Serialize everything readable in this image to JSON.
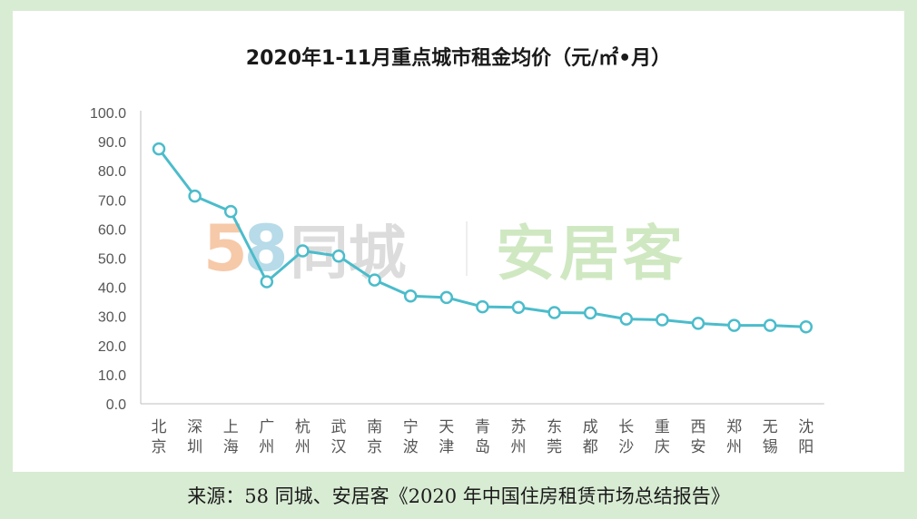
{
  "chart_data": {
    "type": "line",
    "title": "2020年1-11月重点城市租金均价（元/㎡•月）",
    "categories": [
      "北京",
      "深圳",
      "上海",
      "广州",
      "杭州",
      "武汉",
      "南京",
      "宁波",
      "天津",
      "青岛",
      "苏州",
      "东莞",
      "成都",
      "长沙",
      "重庆",
      "西安",
      "郑州",
      "无锡",
      "沈阳"
    ],
    "values": [
      87.5,
      71.3,
      66.0,
      41.9,
      52.5,
      50.7,
      42.5,
      37.0,
      36.5,
      33.3,
      33.1,
      31.3,
      31.2,
      29.1,
      28.8,
      27.6,
      26.9,
      26.9,
      26.4
    ],
    "ylim": [
      0,
      100
    ],
    "yticks": [
      "0.0",
      "10.0",
      "20.0",
      "30.0",
      "40.0",
      "50.0",
      "60.0",
      "70.0",
      "80.0",
      "90.0",
      "100.0"
    ],
    "grid": false,
    "line_color": "#4bbccb",
    "marker_fill": "#ffffff"
  },
  "watermark": {
    "left_digits": [
      "5",
      "8"
    ],
    "left_text": "同城",
    "right_text": "安居客"
  },
  "footer": {
    "source": "来源：58 同城、安居客《2020 年中国住房租赁市场总结报告》"
  }
}
